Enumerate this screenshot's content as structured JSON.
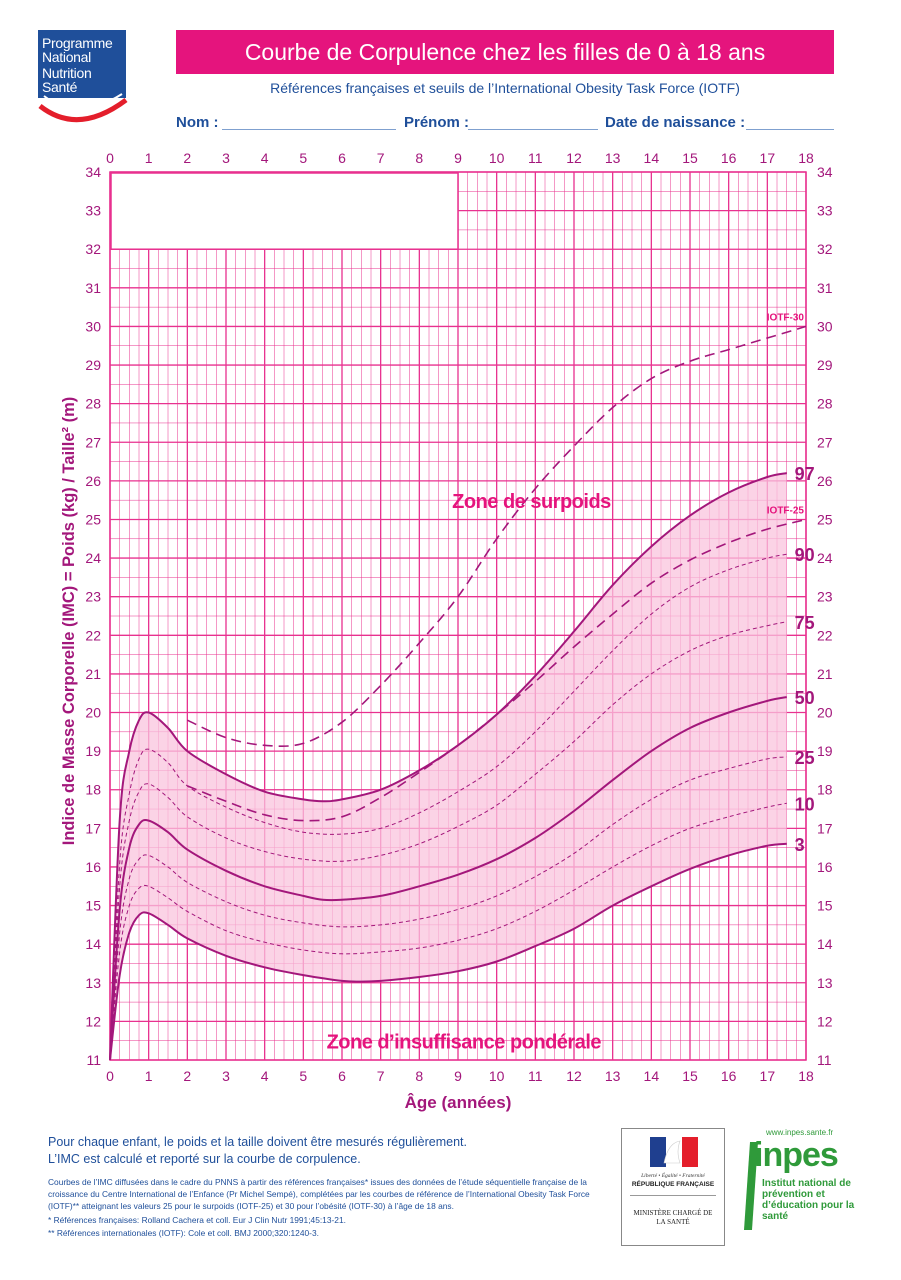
{
  "logo": {
    "lines": [
      "Programme",
      "National",
      "Nutrition",
      "Santé"
    ]
  },
  "header": {
    "title": "Courbe de Corpulence chez les filles de 0 à 18 ans",
    "subtitle": "Références françaises et seuils de l’International Obesity Task Force (IOTF)",
    "fields": {
      "nom": "Nom :",
      "prenom": "Prénom :",
      "date": "Date de naissance :"
    }
  },
  "colors": {
    "brand_pink": "#e5147d",
    "grid": "#e8318f",
    "curve": "#a3177b",
    "band_fill": "#f9c4dd",
    "blue": "#1f4f9a"
  },
  "chart_data": {
    "type": "line",
    "title": "Courbe de Corpulence chez les filles de 0 à 18 ans",
    "xlabel": "Âge (années)",
    "ylabel": "Indice de Masse Corporelle (IMC) = Poids (kg) / Taille² (m)",
    "xlim": [
      0,
      18
    ],
    "ylim": [
      11,
      34
    ],
    "x_ticks": [
      "0",
      "1",
      "2",
      "3",
      "4",
      "5",
      "6",
      "7",
      "8",
      "9",
      "10",
      "11",
      "12",
      "13",
      "14",
      "15",
      "16",
      "17",
      "18"
    ],
    "y_ticks": [
      "11",
      "12",
      "13",
      "14",
      "15",
      "16",
      "17",
      "18",
      "19",
      "20",
      "21",
      "22",
      "23",
      "24",
      "25",
      "26",
      "27",
      "28",
      "29",
      "30",
      "31",
      "32",
      "33",
      "34"
    ],
    "grid": true,
    "annotations": [
      "Zone de surpoids",
      "Zone d’insuffisance pondérale"
    ],
    "shaded_band": {
      "between": [
        "3",
        "97"
      ]
    },
    "series": [
      {
        "name": "97",
        "style": "solid",
        "x": [
          0,
          0.25,
          0.5,
          0.75,
          1,
          1.5,
          2,
          3,
          4,
          5,
          5.5,
          6,
          7,
          8,
          9,
          10,
          11,
          12,
          13,
          14,
          15,
          16,
          17,
          17.5
        ],
        "values": [
          11,
          17.2,
          19.0,
          19.8,
          20.0,
          19.6,
          19.0,
          18.4,
          17.95,
          17.75,
          17.7,
          17.75,
          18.0,
          18.5,
          19.15,
          19.95,
          20.95,
          22.1,
          23.3,
          24.3,
          25.1,
          25.7,
          26.1,
          26.2
        ]
      },
      {
        "name": "90",
        "style": "dashed",
        "x": [
          0,
          0.25,
          0.5,
          0.75,
          1,
          1.5,
          2,
          3,
          4,
          5,
          6,
          7,
          8,
          9,
          10,
          11,
          12,
          13,
          14,
          15,
          16,
          17,
          17.5
        ],
        "values": [
          11,
          16.1,
          17.9,
          18.8,
          19.05,
          18.7,
          18.1,
          17.55,
          17.15,
          16.9,
          16.85,
          17.0,
          17.4,
          17.95,
          18.6,
          19.5,
          20.55,
          21.6,
          22.55,
          23.25,
          23.7,
          24.0,
          24.1
        ]
      },
      {
        "name": "75",
        "style": "dashed",
        "x": [
          0,
          0.25,
          0.5,
          0.75,
          1,
          1.5,
          2,
          3,
          4,
          5,
          6,
          7,
          8,
          9,
          10,
          11,
          12,
          13,
          14,
          15,
          16,
          17,
          17.5
        ],
        "values": [
          11,
          15.5,
          17.2,
          17.95,
          18.15,
          17.8,
          17.3,
          16.75,
          16.4,
          16.2,
          16.15,
          16.3,
          16.6,
          17.05,
          17.6,
          18.4,
          19.25,
          20.2,
          21.0,
          21.6,
          22.0,
          22.25,
          22.35
        ]
      },
      {
        "name": "50",
        "style": "solid",
        "x": [
          0,
          0.25,
          0.5,
          0.75,
          1,
          1.5,
          2,
          3,
          4,
          5,
          5.5,
          6,
          7,
          8,
          9,
          10,
          11,
          12,
          13,
          14,
          15,
          16,
          17,
          17.5
        ],
        "values": [
          11,
          14.9,
          16.5,
          17.1,
          17.2,
          16.9,
          16.45,
          15.9,
          15.5,
          15.25,
          15.15,
          15.15,
          15.25,
          15.5,
          15.8,
          16.2,
          16.75,
          17.45,
          18.25,
          19.0,
          19.6,
          20.0,
          20.3,
          20.4
        ]
      },
      {
        "name": "25",
        "style": "dashed",
        "x": [
          0,
          0.25,
          0.5,
          0.75,
          1,
          1.5,
          2,
          3,
          4,
          5,
          6,
          7,
          8,
          9,
          10,
          11,
          12,
          13,
          14,
          15,
          16,
          17,
          17.5
        ],
        "values": [
          11,
          14.3,
          15.7,
          16.2,
          16.3,
          16.0,
          15.6,
          15.1,
          14.75,
          14.55,
          14.45,
          14.5,
          14.65,
          14.9,
          15.25,
          15.75,
          16.35,
          17.1,
          17.75,
          18.25,
          18.55,
          18.8,
          18.85
        ]
      },
      {
        "name": "10",
        "style": "dashed",
        "x": [
          0,
          0.25,
          0.5,
          0.75,
          1,
          1.5,
          2,
          3,
          4,
          5,
          6,
          7,
          8,
          9,
          10,
          11,
          12,
          13,
          14,
          15,
          16,
          17,
          17.5
        ],
        "values": [
          11,
          13.8,
          15.0,
          15.45,
          15.5,
          15.2,
          14.85,
          14.35,
          14.05,
          13.85,
          13.75,
          13.8,
          13.9,
          14.1,
          14.4,
          14.85,
          15.4,
          16.0,
          16.55,
          17.0,
          17.3,
          17.55,
          17.65
        ]
      },
      {
        "name": "3",
        "style": "solid",
        "x": [
          0,
          0.25,
          0.5,
          0.75,
          1,
          1.5,
          2,
          3,
          4,
          5,
          6,
          6.5,
          7,
          8,
          9,
          10,
          11,
          12,
          13,
          14,
          15,
          16,
          17,
          17.5
        ],
        "values": [
          11,
          13.2,
          14.3,
          14.75,
          14.8,
          14.5,
          14.15,
          13.7,
          13.4,
          13.2,
          13.05,
          13.03,
          13.05,
          13.15,
          13.3,
          13.55,
          13.95,
          14.4,
          15.0,
          15.5,
          15.95,
          16.3,
          16.55,
          16.6
        ]
      },
      {
        "name": "IOTF-30",
        "style": "longdash",
        "x": [
          2,
          3,
          4,
          5,
          6,
          7,
          8,
          9,
          10,
          11,
          12,
          13,
          14,
          15,
          16,
          17,
          18
        ],
        "values": [
          19.8,
          19.35,
          19.15,
          19.2,
          19.75,
          20.7,
          21.8,
          23.0,
          24.5,
          25.8,
          26.9,
          27.9,
          28.65,
          29.1,
          29.4,
          29.7,
          30.0
        ]
      },
      {
        "name": "IOTF-25",
        "style": "longdash",
        "x": [
          2,
          3,
          4,
          5,
          6,
          7,
          8,
          9,
          10,
          11,
          12,
          13,
          14,
          15,
          16,
          17,
          18
        ],
        "values": [
          18.1,
          17.7,
          17.35,
          17.2,
          17.3,
          17.8,
          18.45,
          19.15,
          19.95,
          20.8,
          21.7,
          22.55,
          23.35,
          23.95,
          24.4,
          24.75,
          25.0
        ]
      }
    ]
  },
  "footer": {
    "line1": "Pour chaque enfant, le poids et la taille doivent être mesurés régulièrement.",
    "line2": "L’IMC est calculé et reporté sur la courbe de corpulence.",
    "small": "Courbes de l’IMC diffusées dans le cadre du PNNS à partir des références françaises* issues des données de l’étude séquentielle française de la croissance du Centre International de l’Enfance (Pr Michel Sempé), complétées par les courbes de référence de l’International Obesity Task Force (IOTF)** atteignant les valeurs 25 pour le surpoids (IOTF-25) et 30 pour l’obésité (IOTF-30) à l’âge de 18 ans.",
    "ref1": "* Références françaises: Rolland Cachera et coll. Eur J Clin Nutr 1991;45:13-21.",
    "ref2": "** Références internationales (IOTF): Cole et coll. BMJ 2000;320:1240-3."
  },
  "republique": {
    "motto": "Liberté • Égalité • Fraternité",
    "name": "RÉPUBLIQUE FRANÇAISE",
    "ministry": "MINISTÈRE CHARGÉ DE LA SANTÉ"
  },
  "inpes": {
    "url": "www.inpes.sante.fr",
    "word": "inpes",
    "text": "Institut national de prévention et d’éducation pour la santé"
  }
}
